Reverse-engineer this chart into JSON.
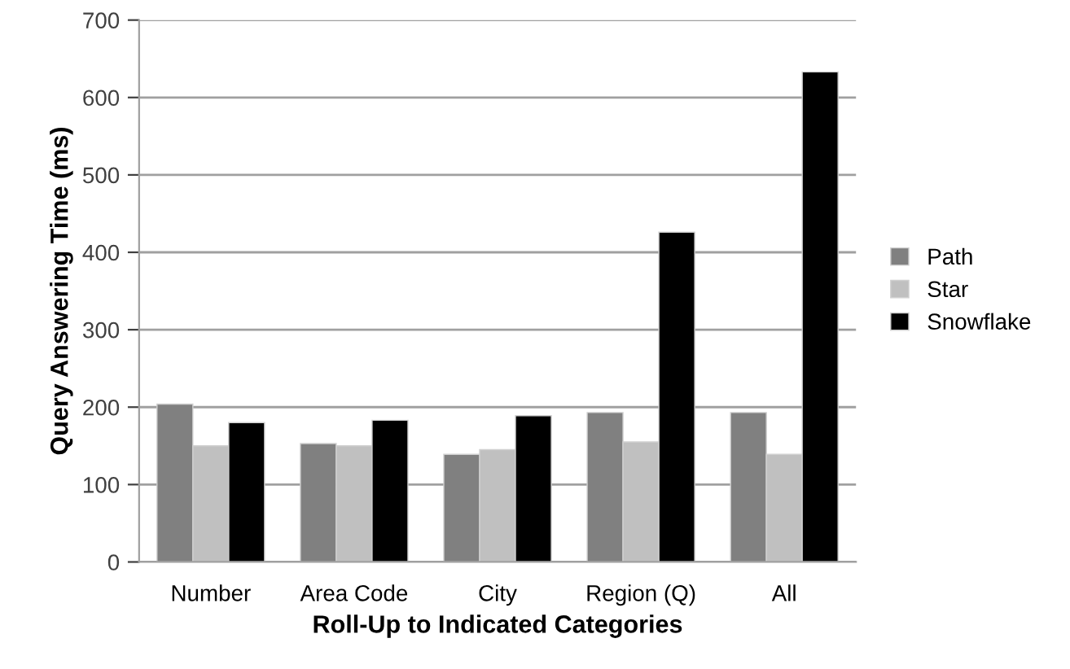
{
  "chart_data": {
    "type": "bar",
    "xlabel": "Roll-Up to Indicated Categories",
    "ylabel": "Query Answering Time (ms)",
    "categories": [
      "Number",
      "Area Code",
      "City",
      "Region (Q)",
      "All"
    ],
    "series": [
      {
        "name": "Path",
        "color": "#808080",
        "values": [
          204,
          153,
          139,
          193,
          193
        ]
      },
      {
        "name": "Star",
        "color": "#c0c0c0",
        "values": [
          150,
          150,
          145,
          155,
          139
        ]
      },
      {
        "name": "Snowflake",
        "color": "#000000",
        "values": [
          180,
          183,
          189,
          426,
          633
        ]
      }
    ],
    "ylim": [
      0,
      700
    ],
    "yticks": [
      0,
      100,
      200,
      300,
      400,
      500,
      600,
      700
    ],
    "grid": "y",
    "legend": "right"
  }
}
